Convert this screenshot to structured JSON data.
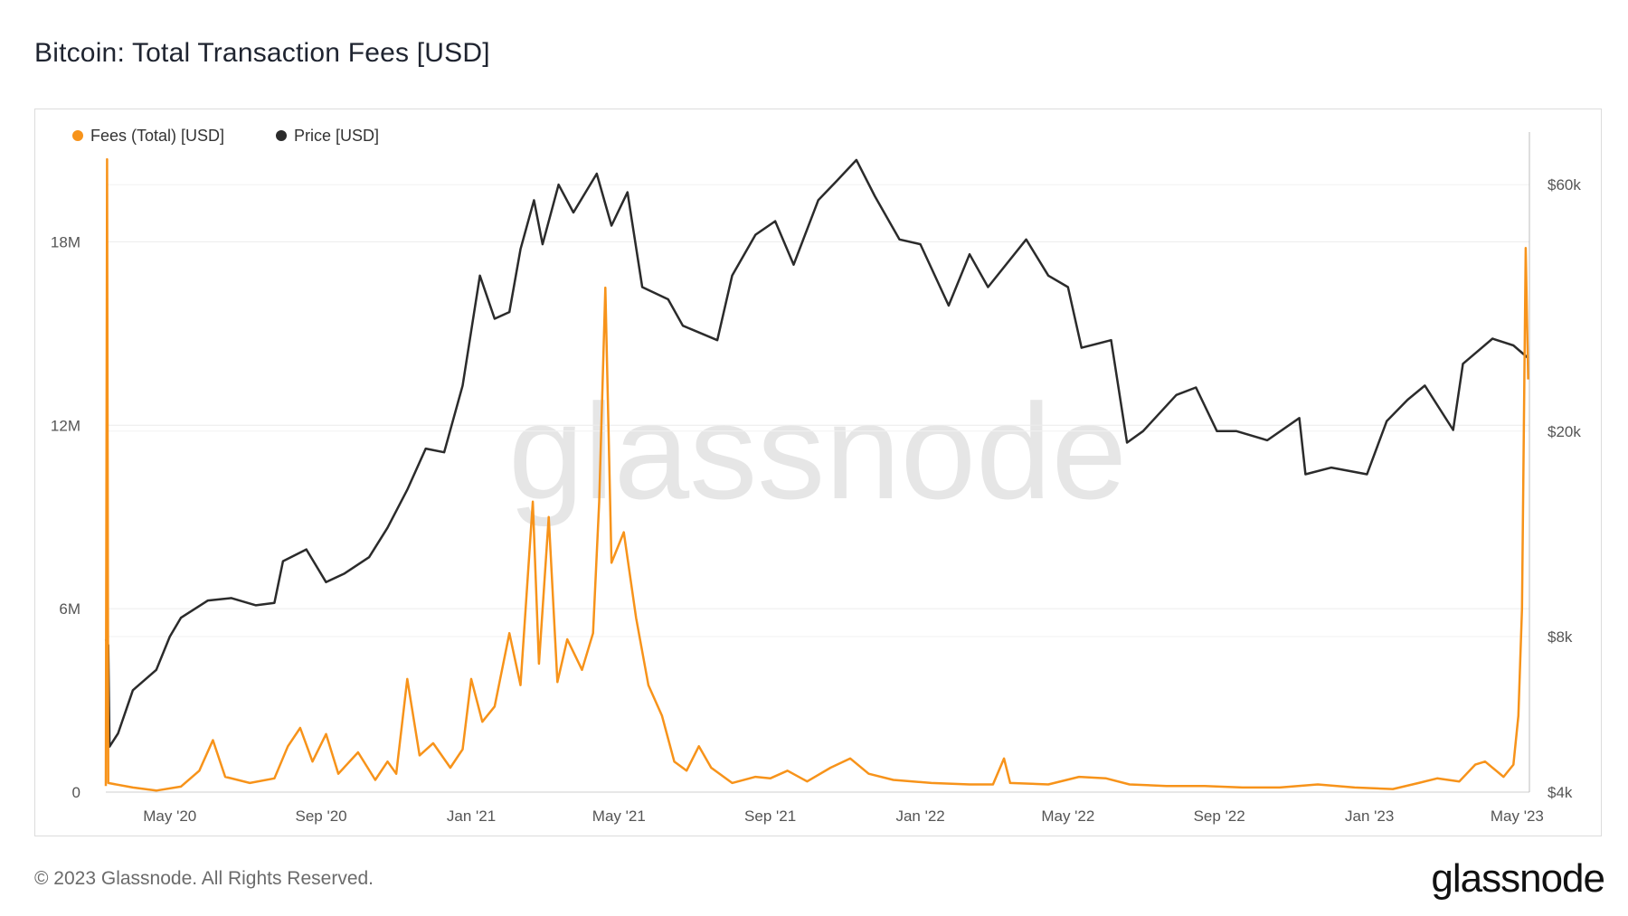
{
  "title": "Bitcoin: Total Transaction Fees [USD]",
  "footer": {
    "copyright": "© 2023 Glassnode. All Rights Reserved.",
    "logo": "glassnode"
  },
  "watermark": "glassnode",
  "chart_data": {
    "type": "line",
    "title": "Bitcoin: Total Transaction Fees [USD]",
    "legend": {
      "placement": "top-left",
      "entries": [
        "Fees (Total) [USD]",
        "Price [USD]"
      ]
    },
    "grid": true,
    "x_ticks": [
      "May '20",
      "Sep '20",
      "Jan '21",
      "May '21",
      "Sep '21",
      "Jan '22",
      "May '22",
      "Sep '22",
      "Jan '23",
      "May '23"
    ],
    "x_range": [
      "2020-03-10",
      "2023-05-11"
    ],
    "y_left": {
      "label": "",
      "ticks": [
        "0",
        "6M",
        "12M",
        "18M"
      ],
      "tick_values": [
        0,
        6000000,
        12000000,
        18000000
      ],
      "range": [
        0,
        21000000
      ]
    },
    "y_right": {
      "label": "",
      "scale": "log",
      "ticks": [
        "$4k",
        "$8k",
        "$20k",
        "$60k"
      ],
      "tick_values": [
        4000,
        8000,
        20000,
        60000
      ],
      "range": [
        4000,
        70000
      ]
    },
    "series": [
      {
        "name": "Fees (Total) [USD]",
        "axis": "left",
        "color": "#f7931a",
        "points": [
          [
            "2020-03-10",
            200000
          ],
          [
            "2020-03-11",
            20700000
          ],
          [
            "2020-03-12",
            300000
          ],
          [
            "2020-04-01",
            150000
          ],
          [
            "2020-04-20",
            50000
          ],
          [
            "2020-05-10",
            180000
          ],
          [
            "2020-05-25",
            700000
          ],
          [
            "2020-06-05",
            1700000
          ],
          [
            "2020-06-15",
            500000
          ],
          [
            "2020-07-05",
            300000
          ],
          [
            "2020-07-25",
            450000
          ],
          [
            "2020-08-05",
            1500000
          ],
          [
            "2020-08-15",
            2100000
          ],
          [
            "2020-08-25",
            1000000
          ],
          [
            "2020-09-05",
            1900000
          ],
          [
            "2020-09-15",
            600000
          ],
          [
            "2020-10-01",
            1300000
          ],
          [
            "2020-10-15",
            400000
          ],
          [
            "2020-10-25",
            1000000
          ],
          [
            "2020-11-01",
            600000
          ],
          [
            "2020-11-10",
            3700000
          ],
          [
            "2020-11-20",
            1200000
          ],
          [
            "2020-12-01",
            1600000
          ],
          [
            "2020-12-15",
            800000
          ],
          [
            "2020-12-25",
            1400000
          ],
          [
            "2021-01-01",
            3700000
          ],
          [
            "2021-01-10",
            2300000
          ],
          [
            "2021-01-20",
            2800000
          ],
          [
            "2021-02-01",
            5200000
          ],
          [
            "2021-02-10",
            3500000
          ],
          [
            "2021-02-20",
            9500000
          ],
          [
            "2021-02-25",
            4200000
          ],
          [
            "2021-03-05",
            9000000
          ],
          [
            "2021-03-12",
            3600000
          ],
          [
            "2021-03-20",
            5000000
          ],
          [
            "2021-04-01",
            4000000
          ],
          [
            "2021-04-10",
            5200000
          ],
          [
            "2021-04-15",
            9500000
          ],
          [
            "2021-04-20",
            16500000
          ],
          [
            "2021-04-25",
            7500000
          ],
          [
            "2021-05-05",
            8500000
          ],
          [
            "2021-05-15",
            5700000
          ],
          [
            "2021-05-25",
            3500000
          ],
          [
            "2021-06-05",
            2500000
          ],
          [
            "2021-06-15",
            1000000
          ],
          [
            "2021-06-25",
            700000
          ],
          [
            "2021-07-05",
            1500000
          ],
          [
            "2021-07-15",
            800000
          ],
          [
            "2021-08-01",
            300000
          ],
          [
            "2021-08-20",
            500000
          ],
          [
            "2021-09-01",
            450000
          ],
          [
            "2021-09-15",
            700000
          ],
          [
            "2021-10-01",
            350000
          ],
          [
            "2021-10-20",
            800000
          ],
          [
            "2021-11-05",
            1100000
          ],
          [
            "2021-11-20",
            600000
          ],
          [
            "2021-12-10",
            400000
          ],
          [
            "2022-01-10",
            300000
          ],
          [
            "2022-02-10",
            250000
          ],
          [
            "2022-03-01",
            250000
          ],
          [
            "2022-03-10",
            1100000
          ],
          [
            "2022-03-15",
            300000
          ],
          [
            "2022-04-15",
            250000
          ],
          [
            "2022-05-10",
            500000
          ],
          [
            "2022-06-01",
            450000
          ],
          [
            "2022-06-20",
            250000
          ],
          [
            "2022-07-20",
            200000
          ],
          [
            "2022-08-20",
            200000
          ],
          [
            "2022-09-20",
            150000
          ],
          [
            "2022-10-20",
            150000
          ],
          [
            "2022-11-20",
            250000
          ],
          [
            "2022-12-20",
            150000
          ],
          [
            "2023-01-20",
            100000
          ],
          [
            "2023-02-10",
            300000
          ],
          [
            "2023-02-25",
            450000
          ],
          [
            "2023-03-15",
            350000
          ],
          [
            "2023-03-28",
            900000
          ],
          [
            "2023-04-05",
            1000000
          ],
          [
            "2023-04-20",
            500000
          ],
          [
            "2023-04-28",
            900000
          ],
          [
            "2023-05-02",
            2500000
          ],
          [
            "2023-05-05",
            6000000
          ],
          [
            "2023-05-08",
            17800000
          ],
          [
            "2023-05-10",
            13500000
          ]
        ]
      },
      {
        "name": "Price [USD]",
        "axis": "right",
        "color": "#2b2b2b",
        "points": [
          [
            "2020-03-10",
            7900
          ],
          [
            "2020-03-12",
            7700
          ],
          [
            "2020-03-13",
            4900
          ],
          [
            "2020-03-20",
            5200
          ],
          [
            "2020-04-01",
            6300
          ],
          [
            "2020-04-20",
            6900
          ],
          [
            "2020-05-01",
            8000
          ],
          [
            "2020-05-10",
            8700
          ],
          [
            "2020-06-01",
            9400
          ],
          [
            "2020-06-20",
            9500
          ],
          [
            "2020-07-10",
            9200
          ],
          [
            "2020-07-25",
            9300
          ],
          [
            "2020-08-01",
            11200
          ],
          [
            "2020-08-20",
            11800
          ],
          [
            "2020-09-05",
            10200
          ],
          [
            "2020-09-20",
            10600
          ],
          [
            "2020-10-10",
            11400
          ],
          [
            "2020-10-25",
            13000
          ],
          [
            "2020-11-10",
            15400
          ],
          [
            "2020-11-25",
            18500
          ],
          [
            "2020-12-10",
            18200
          ],
          [
            "2020-12-25",
            24500
          ],
          [
            "2021-01-08",
            40000
          ],
          [
            "2021-01-20",
            33000
          ],
          [
            "2021-02-01",
            34000
          ],
          [
            "2021-02-10",
            45000
          ],
          [
            "2021-02-21",
            56000
          ],
          [
            "2021-02-28",
            46000
          ],
          [
            "2021-03-13",
            60000
          ],
          [
            "2021-03-25",
            53000
          ],
          [
            "2021-04-13",
            63000
          ],
          [
            "2021-04-25",
            50000
          ],
          [
            "2021-05-08",
            58000
          ],
          [
            "2021-05-20",
            38000
          ],
          [
            "2021-06-10",
            36000
          ],
          [
            "2021-06-22",
            32000
          ],
          [
            "2021-07-20",
            30000
          ],
          [
            "2021-08-01",
            40000
          ],
          [
            "2021-08-20",
            48000
          ],
          [
            "2021-09-05",
            51000
          ],
          [
            "2021-09-20",
            42000
          ],
          [
            "2021-10-10",
            56000
          ],
          [
            "2021-10-25",
            61000
          ],
          [
            "2021-11-10",
            67000
          ],
          [
            "2021-11-25",
            57000
          ],
          [
            "2021-12-15",
            47000
          ],
          [
            "2022-01-01",
            46000
          ],
          [
            "2022-01-24",
            35000
          ],
          [
            "2022-02-10",
            44000
          ],
          [
            "2022-02-25",
            38000
          ],
          [
            "2022-03-28",
            47000
          ],
          [
            "2022-04-15",
            40000
          ],
          [
            "2022-05-01",
            38000
          ],
          [
            "2022-05-12",
            29000
          ],
          [
            "2022-06-05",
            30000
          ],
          [
            "2022-06-18",
            19000
          ],
          [
            "2022-07-01",
            20000
          ],
          [
            "2022-07-28",
            23500
          ],
          [
            "2022-08-13",
            24300
          ],
          [
            "2022-08-30",
            20000
          ],
          [
            "2022-09-15",
            20000
          ],
          [
            "2022-10-10",
            19200
          ],
          [
            "2022-11-05",
            21200
          ],
          [
            "2022-11-10",
            16500
          ],
          [
            "2022-12-01",
            17000
          ],
          [
            "2022-12-30",
            16500
          ],
          [
            "2023-01-15",
            20900
          ],
          [
            "2023-02-01",
            23000
          ],
          [
            "2023-02-15",
            24500
          ],
          [
            "2023-03-10",
            20100
          ],
          [
            "2023-03-18",
            27000
          ],
          [
            "2023-04-11",
            30200
          ],
          [
            "2023-04-28",
            29300
          ],
          [
            "2023-05-10",
            27700
          ]
        ]
      }
    ]
  }
}
